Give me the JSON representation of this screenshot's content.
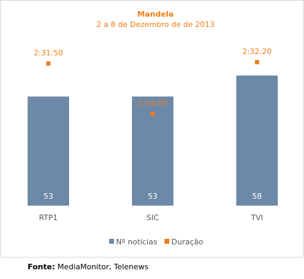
{
  "colors": {
    "bars": "#6d89a8",
    "markers": "#f07c19",
    "title": "#f07c19",
    "axis_text": "#555555",
    "bar_label": "#ffffff"
  },
  "source": {
    "label": "Fonte:",
    "text": "MediaMonitor, Telenews"
  },
  "chart_data": {
    "type": "bar",
    "title": "Mandela",
    "subtitle": "2 a 8 de Dezembro de de 2013",
    "categories": [
      "RTP1",
      "SIC",
      "TVI"
    ],
    "series": [
      {
        "name": "Nº notícias",
        "kind": "bar",
        "axis": "primary",
        "values": [
          53,
          53,
          58
        ],
        "labels": [
          "53",
          "53",
          "58"
        ]
      },
      {
        "name": "Duração",
        "kind": "marker",
        "axis": "secondary",
        "values": [
          "2:31:50",
          "2:14:05",
          "2:32:20"
        ],
        "labels": [
          "2:31:50",
          "2:14:05",
          "2:32:20"
        ]
      }
    ],
    "legend_position": "bottom",
    "grid": false
  }
}
